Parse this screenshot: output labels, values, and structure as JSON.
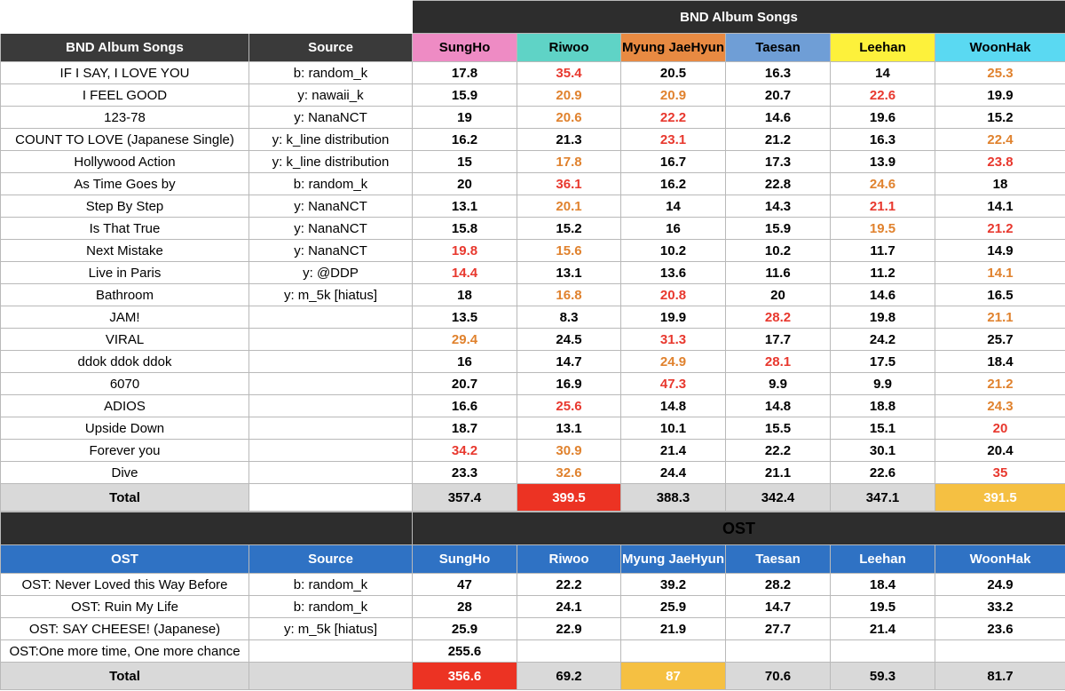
{
  "colors": {
    "red_text": "#e8382e",
    "orange_text": "#e0822e",
    "red_fill": "#ec3323",
    "yellow_fill": "#f5c042",
    "dark_header": "#2d2d2d",
    "blue_header": "#2f72c4",
    "total_gray": "#d9d9d9"
  },
  "album": {
    "section_title": "BND Album Songs",
    "col_song": "BND Album Songs",
    "col_source": "Source",
    "members": [
      {
        "name": "SungHo",
        "bg": "#ee8bc4"
      },
      {
        "name": "Riwoo",
        "bg": "#5fd3c6"
      },
      {
        "name": "Myung JaeHyun",
        "bg": "#e88a42"
      },
      {
        "name": "Taesan",
        "bg": "#6f9ed6"
      },
      {
        "name": "Leehan",
        "bg": "#fdf13b"
      },
      {
        "name": "WoonHak",
        "bg": "#5ad9f2"
      }
    ],
    "rows": [
      {
        "song": "IF I SAY, I LOVE YOU",
        "source": "b: random_k",
        "vals": [
          "17.8",
          "35.4",
          "20.5",
          "16.3",
          "14",
          "25.3"
        ],
        "hl": [
          "",
          "r",
          "",
          "",
          "",
          "o"
        ]
      },
      {
        "song": "I FEEL GOOD",
        "source": "y: nawaii_k",
        "vals": [
          "15.9",
          "20.9",
          "20.9",
          "20.7",
          "22.6",
          "19.9"
        ],
        "hl": [
          "",
          "o",
          "o",
          "",
          "r",
          ""
        ]
      },
      {
        "song": "123-78",
        "source": "y: NanaNCT",
        "vals": [
          "19",
          "20.6",
          "22.2",
          "14.6",
          "19.6",
          "15.2"
        ],
        "hl": [
          "",
          "o",
          "r",
          "",
          "",
          ""
        ]
      },
      {
        "song": "COUNT TO LOVE (Japanese Single)",
        "source": "y: k_line distribution",
        "vals": [
          "16.2",
          "21.3",
          "23.1",
          "21.2",
          "16.3",
          "22.4"
        ],
        "hl": [
          "",
          "",
          "r",
          "",
          "",
          "o"
        ]
      },
      {
        "song": "Hollywood Action",
        "source": "y: k_line distribution",
        "vals": [
          "15",
          "17.8",
          "16.7",
          "17.3",
          "13.9",
          "23.8"
        ],
        "hl": [
          "",
          "o",
          "",
          "",
          "",
          "r"
        ]
      },
      {
        "song": "As Time Goes by",
        "source": "b: random_k",
        "vals": [
          "20",
          "36.1",
          "16.2",
          "22.8",
          "24.6",
          "18"
        ],
        "hl": [
          "",
          "r",
          "",
          "",
          "o",
          ""
        ]
      },
      {
        "song": "Step By Step",
        "source": "y: NanaNCT",
        "vals": [
          "13.1",
          "20.1",
          "14",
          "14.3",
          "21.1",
          "14.1"
        ],
        "hl": [
          "",
          "o",
          "",
          "",
          "r",
          ""
        ]
      },
      {
        "song": "Is That True",
        "source": "y: NanaNCT",
        "vals": [
          "15.8",
          "15.2",
          "16",
          "15.9",
          "19.5",
          "21.2"
        ],
        "hl": [
          "",
          "",
          "",
          "",
          "o",
          "r"
        ]
      },
      {
        "song": "Next Mistake",
        "source": "y: NanaNCT",
        "vals": [
          "19.8",
          "15.6",
          "10.2",
          "10.2",
          "11.7",
          "14.9"
        ],
        "hl": [
          "r",
          "o",
          "",
          "",
          "",
          ""
        ]
      },
      {
        "song": "Live in Paris",
        "source": "y: @DDP",
        "vals": [
          "14.4",
          "13.1",
          "13.6",
          "11.6",
          "11.2",
          "14.1"
        ],
        "hl": [
          "r",
          "",
          "",
          "",
          "",
          "o"
        ]
      },
      {
        "song": "Bathroom",
        "source": "y: m_5k [hiatus]",
        "vals": [
          "18",
          "16.8",
          "20.8",
          "20",
          "14.6",
          "16.5"
        ],
        "hl": [
          "",
          "o",
          "r",
          "",
          "",
          ""
        ]
      },
      {
        "song": "JAM!",
        "source": "",
        "vals": [
          "13.5",
          "8.3",
          "19.9",
          "28.2",
          "19.8",
          "21.1"
        ],
        "hl": [
          "",
          "",
          "",
          "r",
          "",
          "o"
        ]
      },
      {
        "song": "VIRAL",
        "source": "",
        "vals": [
          "29.4",
          "24.5",
          "31.3",
          "17.7",
          "24.2",
          "25.7"
        ],
        "hl": [
          "o",
          "",
          "r",
          "",
          "",
          ""
        ]
      },
      {
        "song": "ddok ddok ddok",
        "source": "",
        "vals": [
          "16",
          "14.7",
          "24.9",
          "28.1",
          "17.5",
          "18.4"
        ],
        "hl": [
          "",
          "",
          "o",
          "r",
          "",
          ""
        ]
      },
      {
        "song": "6070",
        "source": "",
        "vals": [
          "20.7",
          "16.9",
          "47.3",
          "9.9",
          "9.9",
          "21.2"
        ],
        "hl": [
          "",
          "",
          "r",
          "",
          "",
          "o"
        ]
      },
      {
        "song": "ADIOS",
        "source": "",
        "vals": [
          "16.6",
          "25.6",
          "14.8",
          "14.8",
          "18.8",
          "24.3"
        ],
        "hl": [
          "",
          "r",
          "",
          "",
          "",
          "o"
        ]
      },
      {
        "song": "Upside Down",
        "source": "",
        "vals": [
          "18.7",
          "13.1",
          "10.1",
          "15.5",
          "15.1",
          "20"
        ],
        "hl": [
          "",
          "",
          "",
          "",
          "",
          "r"
        ]
      },
      {
        "song": "Forever you",
        "source": "",
        "vals": [
          "34.2",
          "30.9",
          "21.4",
          "22.2",
          "30.1",
          "20.4"
        ],
        "hl": [
          "r",
          "o",
          "",
          "",
          "",
          ""
        ]
      },
      {
        "song": "Dive",
        "source": "",
        "vals": [
          "23.3",
          "32.6",
          "24.4",
          "21.1",
          "22.6",
          "35"
        ],
        "hl": [
          "",
          "o",
          "",
          "",
          "",
          "r"
        ]
      }
    ],
    "total": {
      "label": "Total",
      "vals": [
        "357.4",
        "399.5",
        "388.3",
        "342.4",
        "347.1",
        "391.5"
      ],
      "fill": [
        "",
        "red",
        "",
        "",
        "",
        "yellow"
      ]
    }
  },
  "ost": {
    "section_title": "OST",
    "col_song": "OST",
    "col_source": "Source",
    "members": [
      "SungHo",
      "Riwoo",
      "Myung JaeHyun",
      "Taesan",
      "Leehan",
      "WoonHak"
    ],
    "rows": [
      {
        "song": "OST: Never Loved this Way Before",
        "source": "b: random_k",
        "vals": [
          "47",
          "22.2",
          "39.2",
          "28.2",
          "18.4",
          "24.9"
        ]
      },
      {
        "song": "OST: Ruin My Life",
        "source": "b: random_k",
        "vals": [
          "28",
          "24.1",
          "25.9",
          "14.7",
          "19.5",
          "33.2"
        ]
      },
      {
        "song": "OST: SAY CHEESE! (Japanese)",
        "source": "y: m_5k [hiatus]",
        "vals": [
          "25.9",
          "22.9",
          "21.9",
          "27.7",
          "21.4",
          "23.6"
        ]
      },
      {
        "song": "OST:One more time, One more chance",
        "source": "",
        "vals": [
          "255.6",
          "",
          "",
          "",
          "",
          ""
        ]
      }
    ],
    "total": {
      "label": "Total",
      "vals": [
        "356.6",
        "69.2",
        "87",
        "70.6",
        "59.3",
        "81.7"
      ],
      "fill": [
        "red",
        "",
        "yellow",
        "",
        "",
        ""
      ]
    }
  }
}
